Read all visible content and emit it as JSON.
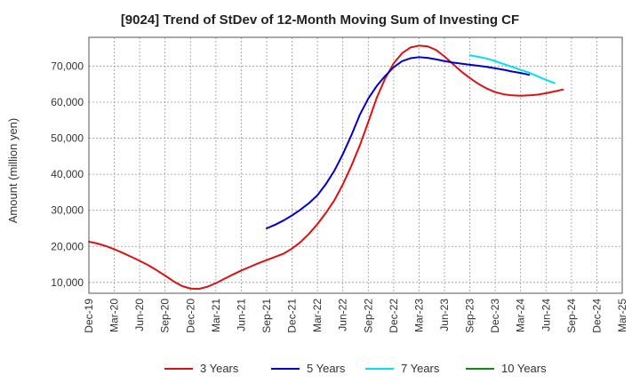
{
  "chart_data": {
    "type": "line",
    "title": "[9024]  Trend of StDev of 12-Month Moving Sum of Investing CF",
    "ylabel": "Amount (million yen)",
    "xlabel": "",
    "ylim": [
      7000,
      78000
    ],
    "yticks": [
      10000,
      20000,
      30000,
      40000,
      50000,
      60000,
      70000
    ],
    "ytick_labels": [
      "10,000",
      "20,000",
      "30,000",
      "40,000",
      "50,000",
      "60,000",
      "70,000"
    ],
    "xticks": [
      "Dec-19",
      "Mar-20",
      "Jun-20",
      "Sep-20",
      "Dec-20",
      "Mar-21",
      "Jun-21",
      "Sep-21",
      "Dec-21",
      "Mar-22",
      "Jun-22",
      "Sep-22",
      "Dec-22",
      "Mar-23",
      "Jun-23",
      "Sep-23",
      "Dec-23",
      "Mar-24",
      "Jun-24",
      "Sep-24",
      "Dec-24",
      "Mar-25"
    ],
    "grid": true,
    "legend_position": "bottom",
    "series": [
      {
        "name": "3 Years",
        "color": "#dd1111",
        "start_index": 0,
        "values": [
          21300,
          20800,
          20100,
          19200,
          18200,
          17100,
          16000,
          14800,
          13400,
          11900,
          10300,
          9000,
          8300,
          8200,
          8800,
          9800,
          11000,
          12200,
          13300,
          14300,
          15300,
          16200,
          17100,
          18000,
          19400,
          21200,
          23500,
          26200,
          29300,
          32800,
          37200,
          42300,
          48000,
          54500,
          61200,
          66600,
          70800,
          73600,
          75200,
          75700,
          75500,
          74500,
          72700,
          70600,
          68500,
          66700,
          65100,
          63800,
          62800,
          62200,
          61900,
          61800,
          61900,
          62100,
          62500,
          63000,
          63500
        ]
      },
      {
        "name": "5 Years",
        "color": "#0000cc",
        "start_index": 21,
        "values": [
          25000,
          26000,
          27200,
          28600,
          30200,
          32000,
          34200,
          37300,
          41000,
          45600,
          50800,
          56500,
          61000,
          64500,
          67300,
          69700,
          71400,
          72200,
          72500,
          72300,
          71900,
          71400,
          71000,
          70700,
          70400,
          70100,
          69800,
          69400,
          69000,
          68500,
          68100,
          67600
        ]
      },
      {
        "name": "7 Years",
        "color": "#00e0ee",
        "start_index": 45,
        "values": [
          73000,
          72600,
          72100,
          71400,
          70600,
          69800,
          69000,
          68200,
          67200,
          66200,
          65300
        ]
      },
      {
        "name": "10 Years",
        "color": "#118811",
        "start_index": 0,
        "values": []
      }
    ]
  }
}
